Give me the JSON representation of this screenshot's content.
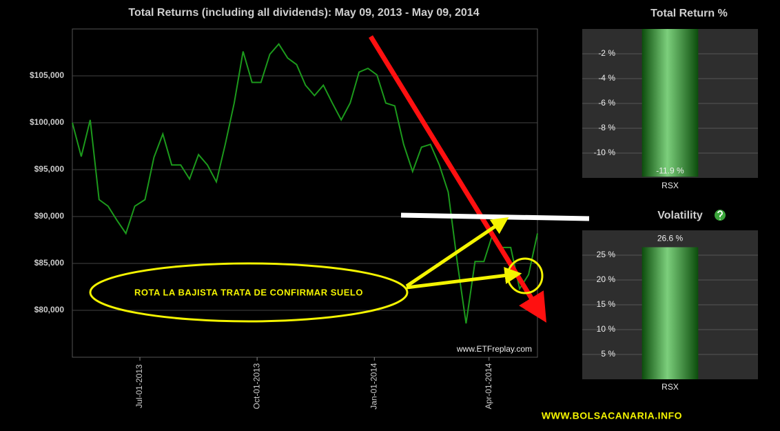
{
  "chart_data": [
    {
      "type": "line",
      "title": "Total Returns (including all dividends): May 09, 2013 - May 09, 2014",
      "color": "#1c9a1c",
      "x": [
        "2013-05-09",
        "2013-05-16",
        "2013-05-23",
        "2013-05-30",
        "2013-06-06",
        "2013-06-13",
        "2013-06-20",
        "2013-06-27",
        "2013-07-05",
        "2013-07-12",
        "2013-07-19",
        "2013-07-26",
        "2013-08-02",
        "2013-08-09",
        "2013-08-16",
        "2013-08-23",
        "2013-08-30",
        "2013-09-06",
        "2013-09-13",
        "2013-09-20",
        "2013-09-27",
        "2013-10-04",
        "2013-10-11",
        "2013-10-18",
        "2013-10-25",
        "2013-11-01",
        "2013-11-08",
        "2013-11-15",
        "2013-11-22",
        "2013-11-29",
        "2013-12-06",
        "2013-12-13",
        "2013-12-20",
        "2013-12-27",
        "2014-01-03",
        "2014-01-10",
        "2014-01-17",
        "2014-01-24",
        "2014-01-31",
        "2014-02-07",
        "2014-02-14",
        "2014-02-21",
        "2014-02-28",
        "2014-03-07",
        "2014-03-14",
        "2014-03-21",
        "2014-03-28",
        "2014-04-04",
        "2014-04-11",
        "2014-04-18",
        "2014-04-25",
        "2014-05-02",
        "2014-05-09"
      ],
      "values": [
        100000,
        96400,
        100300,
        91800,
        91100,
        89600,
        88200,
        91100,
        91800,
        96300,
        98800,
        95500,
        95500,
        94000,
        96600,
        95500,
        93700,
        97700,
        102100,
        107600,
        104300,
        104300,
        107300,
        108400,
        106900,
        106200,
        104000,
        102900,
        104000,
        102100,
        100300,
        102100,
        105400,
        105800,
        105100,
        102100,
        101800,
        97700,
        94800,
        97400,
        97700,
        95500,
        92600,
        85200,
        78600,
        85200,
        85200,
        88200,
        86700,
        86700,
        82300,
        83800,
        88200
      ],
      "xlim": [
        "2013-05-09",
        "2014-05-09"
      ],
      "xticks": [
        {
          "value": "2013-07-01",
          "label": "Jul-01-2013"
        },
        {
          "value": "2013-10-01",
          "label": "Oct-01-2013"
        },
        {
          "value": "2014-01-01",
          "label": "Jan-01-2014"
        },
        {
          "value": "2014-04-01",
          "label": "Apr-01-2014"
        }
      ],
      "ylim": [
        75000,
        110000
      ],
      "yticks": [
        {
          "value": 80000,
          "label": "$80,000"
        },
        {
          "value": 85000,
          "label": "$85,000"
        },
        {
          "value": 90000,
          "label": "$90,000"
        },
        {
          "value": 95000,
          "label": "$95,000"
        },
        {
          "value": 100000,
          "label": "$100,000"
        },
        {
          "value": 105000,
          "label": "$105,000"
        }
      ],
      "grid": true,
      "annotation": "ROTA LA BAJISTA TRATA DE CONFIRMAR SUELO",
      "source": "www.ETFreplay.com"
    },
    {
      "type": "bar",
      "title": "Total Return %",
      "categories": [
        "RSX"
      ],
      "values": [
        -11.9
      ],
      "value_labels": [
        "-11.9 %"
      ],
      "ylim": [
        -12,
        0
      ],
      "yticks": [
        {
          "value": -10,
          "label": "-10 %"
        },
        {
          "value": -8,
          "label": "-8 %"
        },
        {
          "value": -6,
          "label": "-6 %"
        },
        {
          "value": -4,
          "label": "-4 %"
        },
        {
          "value": -2,
          "label": "-2 %"
        }
      ],
      "grid": true
    },
    {
      "type": "bar",
      "title": "Volatility",
      "categories": [
        "RSX"
      ],
      "values": [
        26.6
      ],
      "value_labels": [
        "26.6 %"
      ],
      "ylim": [
        0,
        30
      ],
      "yticks": [
        {
          "value": 5,
          "label": "5 %"
        },
        {
          "value": 10,
          "label": "10 %"
        },
        {
          "value": 15,
          "label": "15 %"
        },
        {
          "value": 20,
          "label": "20 %"
        },
        {
          "value": 25,
          "label": "25 %"
        }
      ],
      "grid": true
    }
  ],
  "footer": "WWW.BOLSACANARIA.INFO"
}
